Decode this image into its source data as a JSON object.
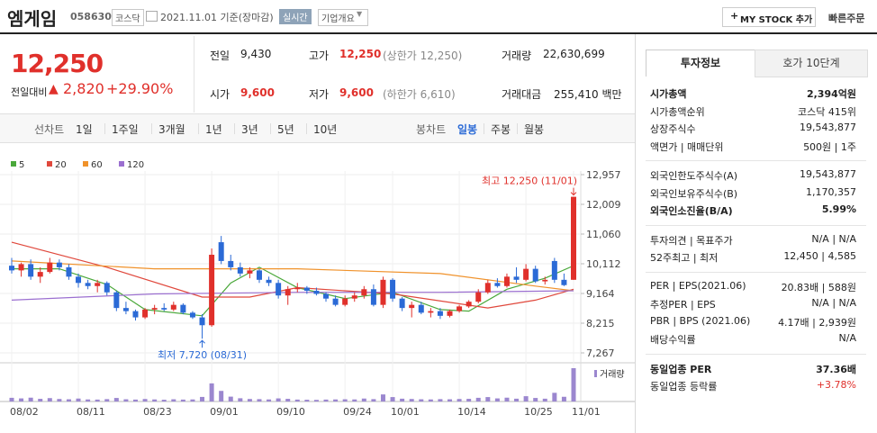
{
  "header": {
    "name": "엠게임",
    "code": "058630",
    "market": "코스닥",
    "date": "2021.11.01 기준(장마감)",
    "realtime": "실시간",
    "overview": "기업개요",
    "my_stock": "MY STOCK 추가",
    "quick_order": "빠른주문"
  },
  "quote": {
    "price": "12,250",
    "change_label": "전일대비",
    "change": "2,820",
    "rate": "+29.90%"
  },
  "summary": [
    {
      "label": "전일",
      "value": "9,430"
    },
    {
      "label": "고가",
      "value": "12,250",
      "note": "(상한가 12,250)"
    },
    {
      "label": "거래량",
      "value": "22,630,699"
    },
    {
      "label": "시가",
      "value": "9,600"
    },
    {
      "label": "저가",
      "value": "9,600",
      "note": "(하한가 6,610)"
    },
    {
      "label": "거래대금",
      "value": "255,410 백만"
    }
  ],
  "period_tabs": {
    "line_chart": "선차트",
    "periods": [
      "1일",
      "1주일",
      "3개월",
      "1년",
      "3년",
      "5년",
      "10년"
    ],
    "candle_chart": "봉차트",
    "candles": [
      "일봉",
      "주봉",
      "월봉"
    ]
  },
  "chart": {
    "type": "candlestick",
    "dates": [
      "08/02",
      null,
      null,
      null,
      null,
      null,
      null,
      "08/11",
      null,
      null,
      null,
      null,
      null,
      null,
      "08/23",
      null,
      null,
      null,
      null,
      null,
      null,
      "09/01",
      null,
      null,
      null,
      null,
      null,
      null,
      "09/10",
      null,
      null,
      null,
      null,
      null,
      null,
      "09/24",
      null,
      null,
      null,
      null,
      "10/01",
      null,
      null,
      null,
      null,
      null,
      null,
      "10/14",
      null,
      null,
      null,
      null,
      null,
      null,
      "10/25",
      null,
      null,
      null,
      null,
      "11/01"
    ],
    "open": [
      10050,
      9900,
      10100,
      9700,
      9850,
      10150,
      10000,
      9700,
      9500,
      9400,
      9500,
      9200,
      8700,
      8600,
      8400,
      8650,
      8700,
      8650,
      8800,
      8550,
      8400,
      8150,
      10800,
      10200,
      10000,
      9800,
      9900,
      9600,
      9500,
      9100,
      9300,
      9350,
      9250,
      9150,
      9000,
      8800,
      9000,
      9100,
      9300,
      8800,
      9600,
      9000,
      8700,
      8800,
      8550,
      8600,
      8450,
      8600,
      8750,
      8900,
      9200,
      9500,
      9400,
      9700,
      9600,
      9950,
      9550,
      10200,
      9600,
      9600
    ],
    "high": [
      10300,
      10150,
      10250,
      10000,
      10300,
      10250,
      10100,
      9800,
      9600,
      9600,
      9550,
      9250,
      8900,
      8650,
      8700,
      8800,
      8850,
      8900,
      8850,
      8600,
      8500,
      10600,
      11000,
      10400,
      10150,
      10000,
      9950,
      9700,
      9600,
      9400,
      9500,
      9400,
      9350,
      9200,
      9100,
      9100,
      9200,
      9400,
      9450,
      9700,
      9650,
      9050,
      8900,
      8900,
      8700,
      8700,
      8650,
      8800,
      8950,
      9300,
      9600,
      9650,
      9800,
      10000,
      10100,
      10050,
      9700,
      10300,
      9800,
      12250
    ],
    "low": [
      9800,
      9700,
      9600,
      9500,
      9800,
      9900,
      9600,
      9350,
      9300,
      9200,
      9100,
      8600,
      8500,
      8300,
      8350,
      8500,
      8600,
      8600,
      8500,
      8350,
      7720,
      8100,
      10100,
      9900,
      9700,
      9650,
      9500,
      9400,
      9000,
      8800,
      9200,
      9150,
      9100,
      8900,
      8750,
      8750,
      8900,
      9000,
      8750,
      8700,
      8900,
      8600,
      8400,
      8500,
      8400,
      8350,
      8400,
      8550,
      8700,
      8850,
      9150,
      9350,
      9350,
      9500,
      9550,
      9500,
      9450,
      9500,
      9400,
      9600
    ],
    "close": [
      9900,
      10100,
      9700,
      9850,
      10150,
      10000,
      9700,
      9500,
      9400,
      9500,
      9200,
      8700,
      8600,
      8400,
      8650,
      8700,
      8650,
      8800,
      8550,
      8400,
      8150,
      10400,
      10200,
      10000,
      9800,
      9900,
      9600,
      9500,
      9100,
      9300,
      9350,
      9250,
      9150,
      9000,
      8800,
      9000,
      9100,
      9300,
      8800,
      9600,
      9000,
      8700,
      8800,
      8550,
      8600,
      8450,
      8600,
      8750,
      8900,
      9200,
      9500,
      9400,
      9700,
      9600,
      9950,
      9550,
      9600,
      9600,
      9430,
      12250
    ],
    "volume": [
      2500000,
      2100000,
      2600000,
      1800000,
      2300000,
      1700000,
      1500000,
      2000000,
      1400000,
      1300000,
      1600000,
      2400000,
      1500000,
      1300000,
      1700000,
      1400000,
      1200000,
      1500000,
      1300000,
      1400000,
      3100000,
      12300000,
      7200000,
      3300000,
      2200000,
      1700000,
      1600000,
      1400000,
      2100000,
      1800000,
      1300000,
      1200000,
      1100000,
      1300000,
      1400000,
      1500000,
      1400000,
      2000000,
      1600000,
      4800000,
      3000000,
      1900000,
      1700000,
      1500000,
      1400000,
      1600000,
      1500000,
      1700000,
      1800000,
      2500000,
      3000000,
      2100000,
      2600000,
      1900000,
      3600000,
      2400000,
      1900000,
      5900000,
      3200000,
      22630699
    ],
    "ma_series": [
      {
        "name": "5",
        "color": "#4aa83a",
        "x": [
          0,
          5,
          10,
          14,
          20,
          23,
          26,
          30,
          35,
          40,
          45,
          48,
          52,
          56,
          59
        ],
        "values": [
          9950,
          9950,
          9450,
          8650,
          8450,
          9500,
          10000,
          9350,
          9000,
          9200,
          8650,
          8600,
          9300,
          9650,
          10050
        ]
      },
      {
        "name": "20",
        "color": "#e0483c",
        "x": [
          0,
          10,
          20,
          25,
          30,
          40,
          50,
          55,
          59
        ],
        "values": [
          10800,
          10000,
          9050,
          9050,
          9350,
          9150,
          8700,
          8950,
          9300
        ]
      },
      {
        "name": "60",
        "color": "#f0922b",
        "x": [
          0,
          15,
          30,
          45,
          55,
          59
        ],
        "values": [
          10200,
          9950,
          9950,
          9800,
          9400,
          9250
        ]
      },
      {
        "name": "120",
        "color": "#9b6fd0",
        "x": [
          0,
          15,
          30,
          45,
          59
        ],
        "values": [
          8950,
          9150,
          9200,
          9200,
          9250
        ]
      }
    ],
    "ylim": [
      7267,
      12957
    ],
    "yticks": [
      {
        "value": 12957,
        "label": "12,957"
      },
      {
        "value": 12009,
        "label": "12,009"
      },
      {
        "value": 11060,
        "label": "11,060"
      },
      {
        "value": 10112,
        "label": "10,112"
      },
      {
        "value": 9164,
        "label": "9,164"
      },
      {
        "value": 8215,
        "label": "8,215"
      },
      {
        "value": 7267,
        "label": "7,267"
      }
    ],
    "annotations": {
      "high": "최고 12,250 (11/01)",
      "low": "최저 7,720 (08/31)"
    },
    "volume_label": "거래량",
    "colors": {
      "up": "#e0302b",
      "down": "#2b6ad6",
      "volume": "#9b87cf"
    }
  },
  "info_panel": {
    "tabs": [
      "투자정보",
      "호가 10단계"
    ],
    "groups": [
      [
        {
          "label": "시가총액",
          "value": "2,394억원"
        },
        {
          "label": "시가총액순위",
          "value": "코스닥 415위"
        },
        {
          "label": "상장주식수",
          "value": "19,543,877"
        },
        {
          "label": "액면가 | 매매단위",
          "value": "500원 | 1주"
        }
      ],
      [
        {
          "label": "외국인한도주식수(A)",
          "value": "19,543,877"
        },
        {
          "label": "외국인보유주식수(B)",
          "value": "1,170,357"
        },
        {
          "label": "외국인소진율(B/A)",
          "value": "5.99%"
        }
      ],
      [
        {
          "label": "투자의견 | 목표주가",
          "value": "N/A | N/A"
        },
        {
          "label": "52주최고 | 최저",
          "value": "12,450 | 4,585"
        }
      ],
      [
        {
          "label": "PER | EPS(2021.06)",
          "value": "20.83배 | 588원"
        },
        {
          "label": "추정PER | EPS",
          "value": "N/A | N/A"
        },
        {
          "label": "PBR | BPS (2021.06)",
          "value": "4.17배 | 2,939원"
        },
        {
          "label": "배당수익률",
          "value": "N/A"
        }
      ],
      [
        {
          "label": "동일업종 PER",
          "value": "37.36배"
        },
        {
          "label": "동일업종 등락률",
          "value": "+3.78%"
        }
      ]
    ]
  }
}
